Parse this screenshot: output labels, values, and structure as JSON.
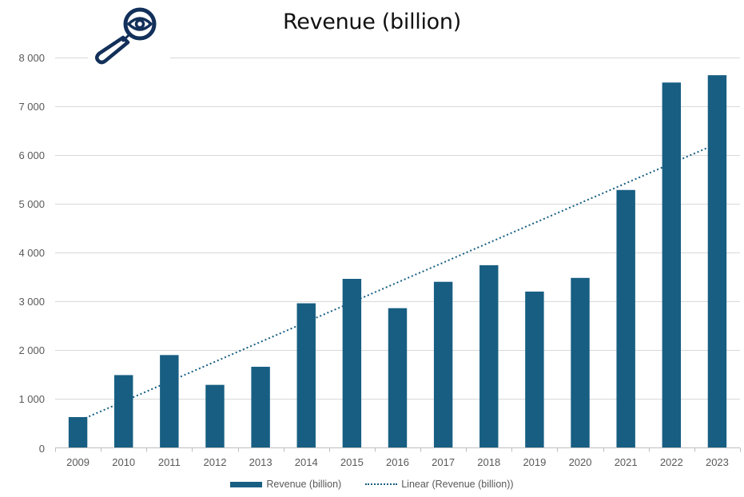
{
  "chart_data": {
    "type": "bar",
    "title": "Revenue (billion)",
    "xlabel": "",
    "ylabel": "",
    "categories": [
      "2009",
      "2010",
      "2011",
      "2012",
      "2013",
      "2014",
      "2015",
      "2016",
      "2017",
      "2018",
      "2019",
      "2020",
      "2021",
      "2022",
      "2023"
    ],
    "series": [
      {
        "name": "Revenue (billion)",
        "type": "bar",
        "color": "#175e82",
        "values": [
          630,
          1490,
          1900,
          1290,
          1660,
          2960,
          3460,
          2860,
          3400,
          3740,
          3200,
          3480,
          5280,
          7480,
          7630
        ]
      },
      {
        "name": "Linear (Revenue (billion))",
        "type": "trendline",
        "style": "dotted",
        "color": "#175e82",
        "start_value": 545,
        "end_value": 6230
      }
    ],
    "ylim": [
      0,
      8000
    ],
    "yticks": [
      0,
      1000,
      2000,
      3000,
      4000,
      5000,
      6000,
      7000,
      8000
    ],
    "ytick_labels": [
      "0",
      "1 000",
      "2 000",
      "3 000",
      "4 000",
      "5 000",
      "6 000",
      "7 000",
      "8 000"
    ],
    "grid": true,
    "legend_position": "bottom",
    "legend": [
      "Revenue (billion)",
      "Linear (Revenue (billion))"
    ]
  },
  "decorations": {
    "icon": "magnifier-eye-icon",
    "icon_color": "#12305a",
    "gridline_color": "#d9d9d9",
    "axis_color": "#bfbfbf"
  }
}
